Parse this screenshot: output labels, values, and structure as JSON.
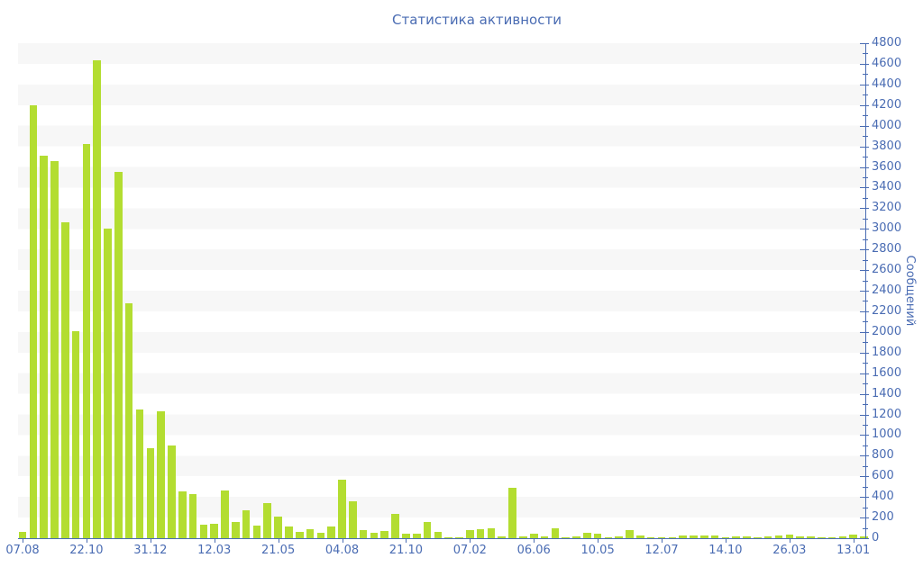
{
  "colors": {
    "bar": "#b3dd31",
    "axis_and_text": "#4a6cb3",
    "band_gray": "#f7f7f7",
    "background": "#ffffff"
  },
  "chart_data": {
    "type": "bar",
    "title": "Статистика активности",
    "ylabel": "Сообщений",
    "xlabel": "",
    "ylim": [
      0,
      4800
    ],
    "y_major_tick_step": 200,
    "y_minor_tick_step": 100,
    "legend": "none",
    "grid": "alternating horizontal bands",
    "y_tick_labels": [
      "0",
      "200",
      "400",
      "600",
      "800",
      "1000",
      "1200",
      "1400",
      "1600",
      "1800",
      "2000",
      "2200",
      "2400",
      "2600",
      "2800",
      "3000",
      "3200",
      "3400",
      "3600",
      "3800",
      "4000",
      "4200",
      "4400",
      "4600",
      "4800"
    ],
    "x_tick_labels": [
      "07.08",
      "22.10",
      "31.12",
      "12.03",
      "21.05",
      "04.08",
      "21.10",
      "07.02",
      "06.06",
      "10.05",
      "12.07",
      "14.10",
      "26.03",
      "13.01"
    ],
    "x_tick_every_n_bars": 6,
    "values": [
      60,
      4200,
      3710,
      3660,
      3060,
      2010,
      3820,
      4630,
      3000,
      3550,
      2280,
      1250,
      870,
      1230,
      900,
      455,
      430,
      130,
      140,
      460,
      160,
      270,
      120,
      340,
      210,
      110,
      60,
      90,
      50,
      110,
      570,
      360,
      80,
      50,
      70,
      240,
      40,
      40,
      160,
      60,
      10,
      10,
      80,
      90,
      100,
      20,
      490,
      20,
      40,
      20,
      100,
      10,
      20,
      50,
      40,
      10,
      20,
      80,
      30,
      10,
      10,
      10,
      30,
      30,
      30,
      30,
      10,
      20,
      20,
      10,
      20,
      25,
      35,
      20,
      20,
      10,
      10,
      20,
      35,
      20
    ]
  }
}
